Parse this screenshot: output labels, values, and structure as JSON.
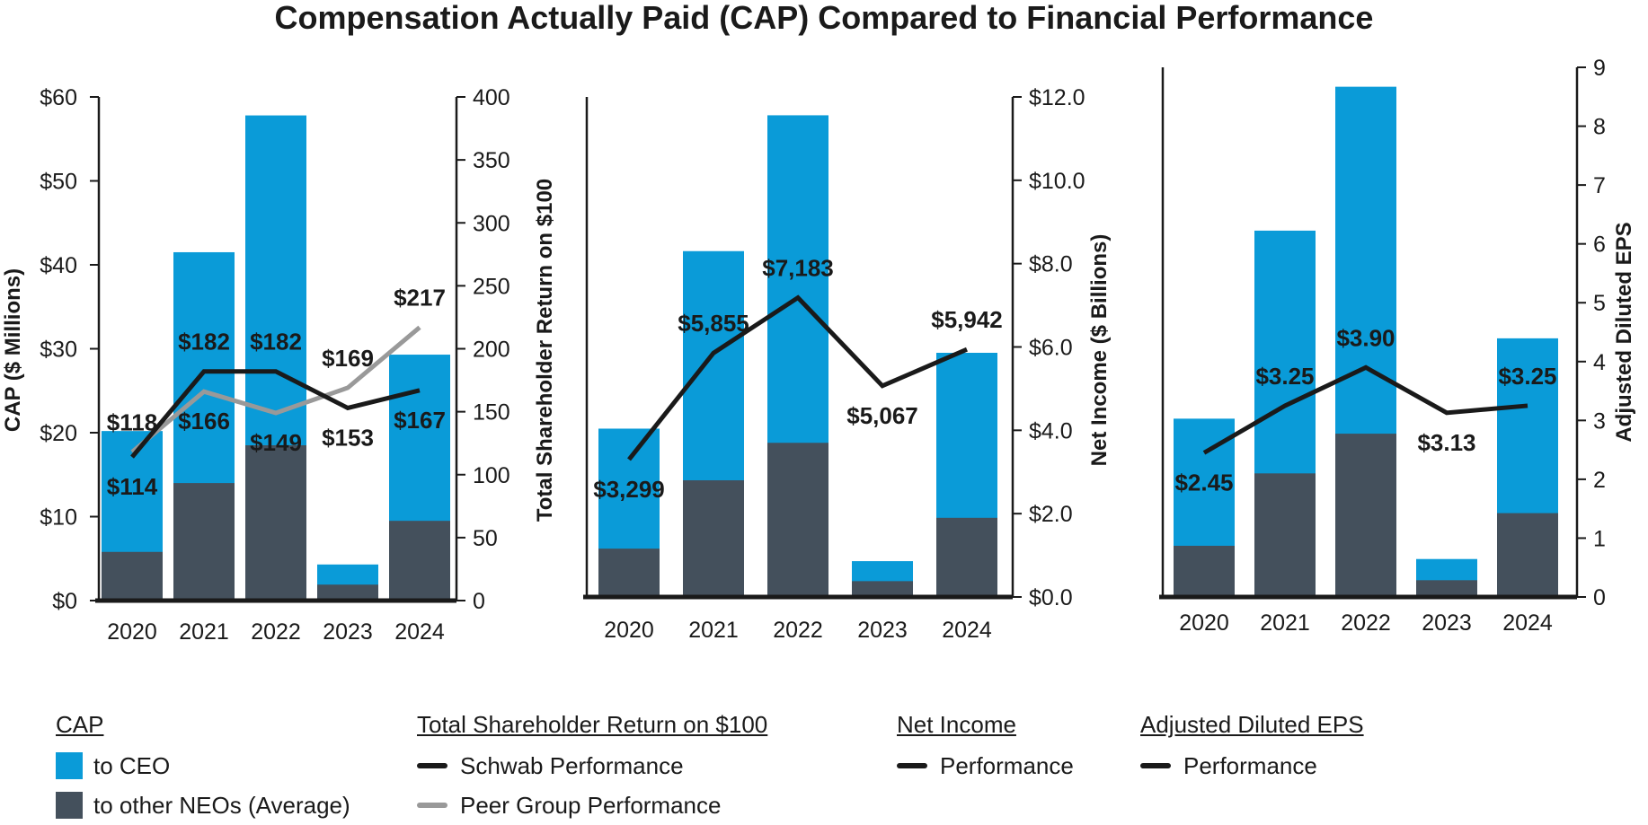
{
  "title": "Compensation Actually Paid (CAP) Compared to Financial Performance",
  "colors": {
    "ceo": "#0a9bd8",
    "neo": "#44505c",
    "schwab": "#1a1a1a",
    "peer": "#999999"
  },
  "chart_data": [
    {
      "type": "bar+line",
      "categories": [
        "2020",
        "2021",
        "2022",
        "2023",
        "2024"
      ],
      "left_axis": {
        "label": "CAP ($ Millions)",
        "range": [
          0,
          60
        ],
        "ticks": [
          0,
          10,
          20,
          30,
          40,
          50,
          60
        ],
        "tick_labels": [
          "$0",
          "$10",
          "$20",
          "$30",
          "$40",
          "$50",
          "$60"
        ]
      },
      "right_axis": {
        "label": "Total Shareholder Return on $100",
        "range": [
          0,
          400
        ],
        "ticks": [
          0,
          50,
          100,
          150,
          200,
          250,
          300,
          350,
          400
        ],
        "tick_labels": [
          "0",
          "50",
          "100",
          "150",
          "200",
          "250",
          "300",
          "350",
          "400"
        ]
      },
      "bars": {
        "to_ceo_total": [
          20.2,
          41.5,
          57.8,
          4.3,
          29.3
        ],
        "to_other_neos_average": [
          5.8,
          14.0,
          18.5,
          1.9,
          9.5
        ]
      },
      "lines": [
        {
          "name": "Schwab Performance",
          "values": [
            114,
            182,
            182,
            153,
            167
          ],
          "labels": [
            "$114",
            "$182",
            "$182",
            "$153",
            "$167"
          ],
          "label_pos": [
            "below",
            "above",
            "above",
            "below",
            "below"
          ]
        },
        {
          "name": "Peer Group Performance",
          "values": [
            118,
            166,
            149,
            169,
            217
          ],
          "labels": [
            "$118",
            "$166",
            "$149",
            "$169",
            "$217"
          ],
          "label_pos": [
            "above",
            "below",
            "below",
            "above",
            "above"
          ]
        }
      ]
    },
    {
      "type": "bar+line",
      "categories": [
        "2020",
        "2021",
        "2022",
        "2023",
        "2024"
      ],
      "left_axis": {
        "range": [
          0,
          60
        ]
      },
      "right_axis": {
        "label": "Net Income ($ Billions)",
        "range": [
          0,
          12
        ],
        "ticks": [
          0,
          2,
          4,
          6,
          8,
          10,
          12
        ],
        "tick_labels": [
          "$0.0",
          "$2.0",
          "$4.0",
          "$6.0",
          "$8.0",
          "$10.0",
          "$12.0"
        ]
      },
      "bars": {
        "to_ceo_total": [
          20.2,
          41.5,
          57.8,
          4.3,
          29.3
        ],
        "to_other_neos_average": [
          5.8,
          14.0,
          18.5,
          1.9,
          9.5
        ]
      },
      "lines": [
        {
          "name": "Net Income Performance",
          "values": [
            3.299,
            5.855,
            7.183,
            5.067,
            5.942
          ],
          "labels": [
            "$3,299",
            "$5,855",
            "$7,183",
            "$5,067",
            "$5,942"
          ],
          "label_pos": [
            "below",
            "above",
            "above",
            "below",
            "above"
          ]
        }
      ]
    },
    {
      "type": "bar+line",
      "categories": [
        "2020",
        "2021",
        "2022",
        "2023",
        "2024"
      ],
      "left_axis": {
        "range": [
          0,
          60
        ]
      },
      "right_axis": {
        "label": "Adjusted Diluted EPS",
        "range": [
          0,
          9
        ],
        "ticks": [
          0,
          1,
          2,
          3,
          4,
          5,
          6,
          7,
          8,
          9
        ],
        "tick_labels": [
          "0",
          "1",
          "2",
          "3",
          "4",
          "5",
          "6",
          "7",
          "8",
          "9"
        ]
      },
      "bars": {
        "to_ceo_total": [
          20.2,
          41.5,
          57.8,
          4.3,
          29.3
        ],
        "to_other_neos_average": [
          5.8,
          14.0,
          18.5,
          1.9,
          9.5
        ]
      },
      "lines": [
        {
          "name": "Adjusted Diluted EPS Performance",
          "values": [
            2.45,
            3.25,
            3.9,
            3.13,
            3.25
          ],
          "labels": [
            "$2.45",
            "$3.25",
            "$3.90",
            "$3.13",
            "$3.25"
          ],
          "label_pos": [
            "below",
            "above",
            "above",
            "below",
            "above"
          ]
        }
      ]
    }
  ],
  "legend": {
    "cap": {
      "heading": "CAP",
      "ceo": "to CEO",
      "neo": "to other NEOs (Average)"
    },
    "tsr": {
      "heading": "Total Shareholder Return on $100",
      "schwab": "Schwab Performance",
      "peer": "Peer Group Performance"
    },
    "net_income": {
      "heading": "Net Income",
      "performance": "Performance"
    },
    "eps": {
      "heading": "Adjusted Diluted EPS",
      "performance": "Performance"
    }
  }
}
